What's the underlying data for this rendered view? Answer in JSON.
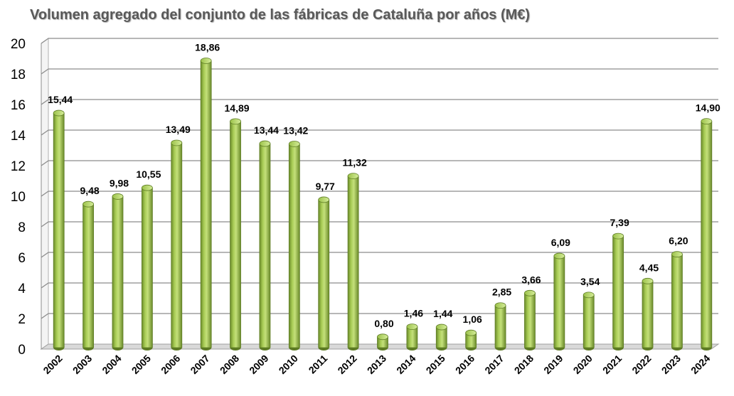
{
  "chart_data": {
    "type": "bar",
    "title": "Volumen agregado del conjunto de las fábricas de Cataluña por años (M€)",
    "xlabel": "",
    "ylabel": "",
    "ylim": [
      0,
      20
    ],
    "yticks": [
      "0",
      "2",
      "4",
      "6",
      "8",
      "10",
      "12",
      "14",
      "16",
      "18",
      "20"
    ],
    "grid": true,
    "legend": "none",
    "bar_color": "#8fb63e",
    "categories": [
      "2002",
      "2003",
      "2004",
      "2005",
      "2006",
      "2007",
      "2008",
      "2009",
      "2010",
      "2011",
      "2012",
      "2013",
      "2014",
      "2015",
      "2016",
      "2017",
      "2018",
      "2019",
      "2020",
      "2021",
      "2022",
      "2023",
      "2024"
    ],
    "values": [
      15.44,
      9.48,
      9.98,
      10.55,
      13.49,
      18.86,
      14.89,
      13.44,
      13.42,
      9.77,
      11.32,
      0.8,
      1.46,
      1.44,
      1.06,
      2.85,
      3.66,
      6.09,
      3.54,
      7.39,
      4.45,
      6.2,
      14.9
    ],
    "labels": [
      "15,44",
      "9,48",
      "9,98",
      "10,55",
      "13,49",
      "18,86",
      "14,89",
      "13,44",
      "13,42",
      "9,77",
      "11,32",
      "0,80",
      "1,46",
      "1,44",
      "1,06",
      "2,85",
      "3,66",
      "6,09",
      "3,54",
      "7,39",
      "4,45",
      "6,20",
      "14,90"
    ]
  }
}
